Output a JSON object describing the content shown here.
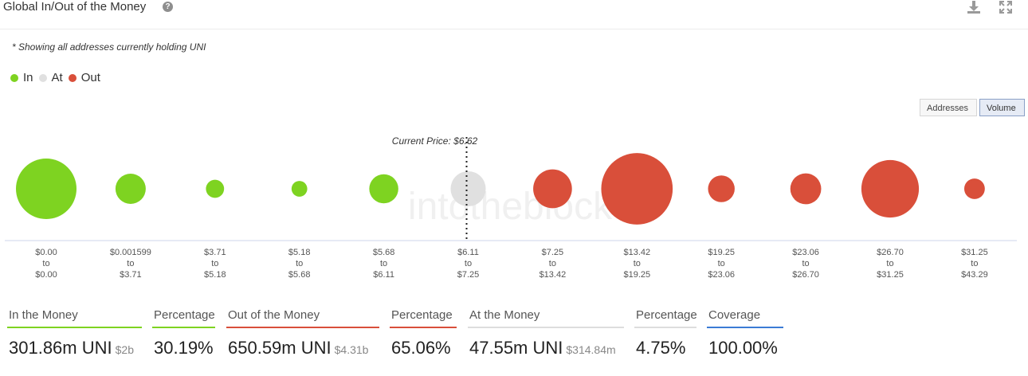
{
  "header": {
    "title": "Global In/Out of the Money",
    "help_icon": "question-circle-icon",
    "download_icon": "download-icon",
    "fullscreen_icon": "expand-icon"
  },
  "note": "* Showing all addresses currently holding UNI",
  "legend": [
    {
      "label": "In",
      "color": "#7ed321"
    },
    {
      "label": "At",
      "color": "#e0e0e0"
    },
    {
      "label": "Out",
      "color": "#d94f3a"
    }
  ],
  "toggles": {
    "addresses": "Addresses",
    "volume": "Volume",
    "active": "volume"
  },
  "chart_data": {
    "type": "bubble",
    "current_price_label": "Current Price: $6.62",
    "current_price_index": 5,
    "watermark": "intotheblock",
    "size_metric": "volume",
    "bubbles": [
      {
        "from": "$0.00",
        "word": "to",
        "to": "$0.00",
        "status": "in",
        "size": 1.0
      },
      {
        "from": "$0.001599",
        "word": "to",
        "to": "$3.71",
        "status": "in",
        "size": 0.5
      },
      {
        "from": "$3.71",
        "word": "to",
        "to": "$5.18",
        "status": "in",
        "size": 0.3
      },
      {
        "from": "$5.18",
        "word": "to",
        "to": "$5.68",
        "status": "in",
        "size": 0.26
      },
      {
        "from": "$5.68",
        "word": "to",
        "to": "$6.11",
        "status": "in",
        "size": 0.48
      },
      {
        "from": "$6.11",
        "word": "to",
        "to": "$7.25",
        "status": "at",
        "size": 0.58
      },
      {
        "from": "$7.25",
        "word": "to",
        "to": "$13.42",
        "status": "out",
        "size": 0.64
      },
      {
        "from": "$13.42",
        "word": "to",
        "to": "$19.25",
        "status": "out",
        "size": 1.18
      },
      {
        "from": "$19.25",
        "word": "to",
        "to": "$23.06",
        "status": "out",
        "size": 0.44
      },
      {
        "from": "$23.06",
        "word": "to",
        "to": "$26.70",
        "status": "out",
        "size": 0.51
      },
      {
        "from": "$26.70",
        "word": "to",
        "to": "$31.25",
        "status": "out",
        "size": 0.95
      },
      {
        "from": "$31.25",
        "word": "to",
        "to": "$43.29",
        "status": "out",
        "size": 0.34
      }
    ]
  },
  "stats": [
    {
      "label": "In the Money",
      "value": "301.86m UNI",
      "sub": "$2b",
      "color": "#7ed321"
    },
    {
      "label": "Percentage",
      "value": "30.19%",
      "sub": "",
      "color": "#7ed321"
    },
    {
      "label": "Out of the Money",
      "value": "650.59m UNI",
      "sub": "$4.31b",
      "color": "#d94f3a"
    },
    {
      "label": "Percentage",
      "value": "65.06%",
      "sub": "",
      "color": "#d94f3a"
    },
    {
      "label": "At the Money",
      "value": "47.55m UNI",
      "sub": "$314.84m",
      "color": "#dddddd"
    },
    {
      "label": "Percentage",
      "value": "4.75%",
      "sub": "",
      "color": "#dddddd"
    },
    {
      "label": "Coverage",
      "value": "100.00%",
      "sub": "",
      "color": "#3a7bd5"
    }
  ]
}
